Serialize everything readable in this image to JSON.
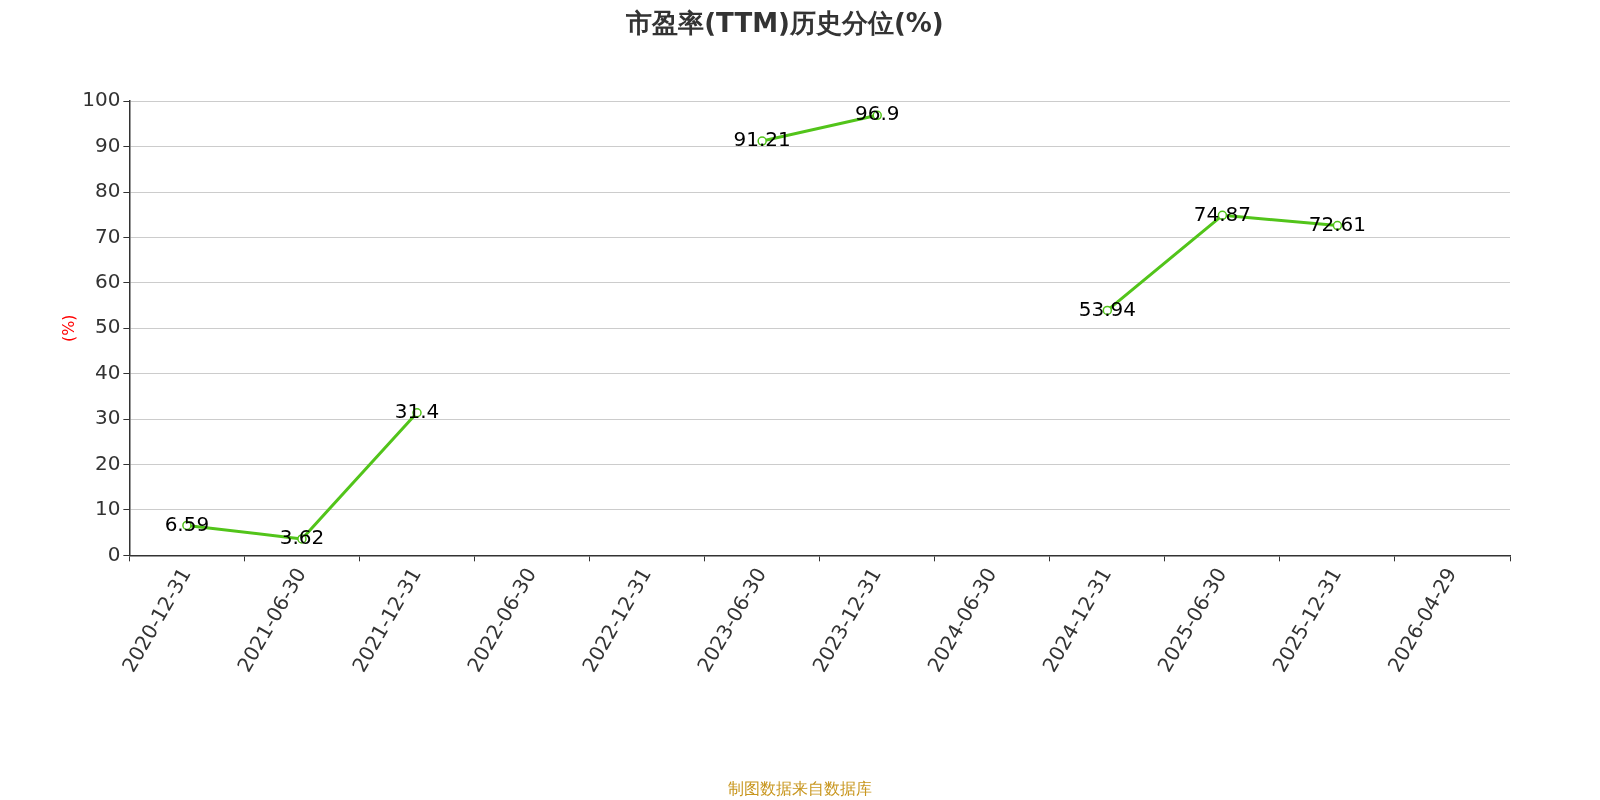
{
  "chart_data": {
    "type": "line",
    "title": "市盈率(TTM)历史分位(%)",
    "ylabel": "(%)",
    "categories": [
      "2020-12-31",
      "2021-06-30",
      "2021-12-31",
      "2022-06-30",
      "2022-12-31",
      "2023-06-30",
      "2023-12-31",
      "2024-06-30",
      "2024-12-31",
      "2025-06-30",
      "2025-12-31",
      "2026-04-29"
    ],
    "series": [
      {
        "color": "#52c41a",
        "values": [
          6.59,
          3.62,
          31.4,
          null,
          null,
          91.21,
          96.9,
          null,
          53.94,
          74.87,
          72.61,
          null
        ]
      }
    ],
    "ylim": [
      0,
      100
    ],
    "yticks": [
      0,
      10,
      20,
      30,
      40,
      50,
      60,
      70,
      80,
      90,
      100
    ],
    "grid": "y",
    "legend": false,
    "marker": "circle",
    "line_style": "solid",
    "data_labels": true,
    "annotations": [
      "制图数据来自数据库"
    ]
  }
}
